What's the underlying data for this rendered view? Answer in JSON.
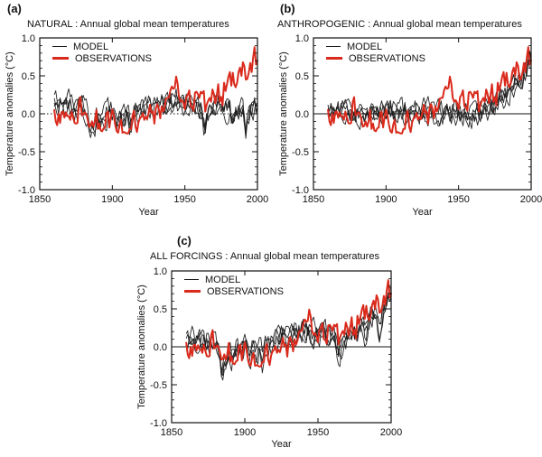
{
  "chart_data": {
    "type": "line",
    "xlabel": "Year",
    "ylabel": "Temperature anomalies (°C)",
    "xlim": [
      1850,
      2000
    ],
    "ylim": [
      -1.0,
      1.0
    ],
    "x_ticks": [
      1850,
      1900,
      1950,
      2000
    ],
    "x_tick_labels": [
      "1850",
      "1900",
      "1950",
      "2000"
    ],
    "y_ticks": [
      1.0,
      0.5,
      0.0,
      -0.5,
      -1.0
    ],
    "y_tick_labels": [
      "1.0",
      "0.5",
      "0.0",
      "-0.5",
      "-1.0"
    ],
    "y_minor_tick_step": 0.1,
    "grid": false,
    "legend": [
      "MODEL",
      "OBSERVATIONS"
    ],
    "legend_position": "top-left",
    "colors": {
      "model": "#1a1a1a",
      "observations": "#d92a1c"
    },
    "model": {
      "name": "MODEL",
      "ensemble_members": 4
    },
    "observations": {
      "name": "OBSERVATIONS",
      "year_start": 1860,
      "year_step": 1,
      "values": [
        0.05,
        -0.1,
        -0.15,
        0.0,
        -0.12,
        0.02,
        0.03,
        -0.05,
        0.02,
        -0.03,
        -0.03,
        -0.08,
        0.03,
        -0.05,
        -0.12,
        -0.13,
        -0.12,
        0.15,
        0.22,
        -0.02,
        -0.01,
        0.02,
        0.0,
        -0.07,
        -0.17,
        -0.16,
        -0.1,
        -0.17,
        -0.1,
        0.05,
        -0.2,
        -0.13,
        -0.22,
        -0.23,
        -0.19,
        -0.18,
        0.01,
        0.03,
        -0.18,
        -0.05,
        0.06,
        -0.02,
        -0.14,
        -0.23,
        -0.25,
        -0.14,
        -0.08,
        -0.25,
        -0.24,
        -0.25,
        -0.26,
        -0.26,
        -0.2,
        -0.2,
        -0.02,
        0.04,
        -0.17,
        -0.24,
        -0.11,
        -0.06,
        -0.04,
        0.01,
        -0.08,
        -0.04,
        -0.07,
        0.01,
        0.12,
        0.01,
        0.03,
        -0.13,
        0.07,
        0.13,
        0.07,
        -0.06,
        0.1,
        0.03,
        0.08,
        0.2,
        0.21,
        0.21,
        0.31,
        0.36,
        0.33,
        0.34,
        0.49,
        0.4,
        0.21,
        0.16,
        0.18,
        0.14,
        0.06,
        0.22,
        0.25,
        0.31,
        0.1,
        0.09,
        0.04,
        0.28,
        0.29,
        0.26,
        0.21,
        0.29,
        0.27,
        0.3,
        0.03,
        0.12,
        0.17,
        0.21,
        0.16,
        0.32,
        0.26,
        0.14,
        0.24,
        0.39,
        0.16,
        0.22,
        0.11,
        0.41,
        0.3,
        0.39,
        0.49,
        0.55,
        0.37,
        0.54,
        0.39,
        0.35,
        0.41,
        0.55,
        0.61,
        0.5,
        0.68,
        0.63,
        0.45,
        0.46,
        0.54,
        0.67,
        0.55,
        0.74,
        0.88,
        0.65,
        0.7
      ]
    },
    "panels": [
      {
        "panel_label": "(a)",
        "title": "NATURAL : Annual global mean temperatures",
        "zero_line_style": "dotted",
        "model_mean": [
          0.15,
          0.16,
          0.12,
          0.1,
          0.14,
          0.15,
          0.17,
          0.13,
          0.1,
          0.12,
          0.14,
          0.12,
          0.13,
          0.11,
          0.1,
          0.12,
          0.1,
          0.11,
          0.13,
          0.1,
          0.1,
          0.08,
          0.05,
          -0.1,
          -0.28,
          -0.3,
          -0.2,
          -0.15,
          -0.12,
          -0.05,
          -0.08,
          -0.12,
          -0.08,
          -0.05,
          -0.03,
          -0.02,
          0.0,
          0.02,
          0.02,
          0.03,
          0.02,
          0.0,
          -0.1,
          -0.15,
          -0.1,
          -0.05,
          -0.02,
          -0.08,
          -0.05,
          -0.05,
          -0.03,
          -0.05,
          -0.15,
          -0.12,
          -0.05,
          0.0,
          0.02,
          0.0,
          0.02,
          0.05,
          0.06,
          0.08,
          0.07,
          0.08,
          0.09,
          0.1,
          0.11,
          0.11,
          0.1,
          0.09,
          0.11,
          0.12,
          0.12,
          0.11,
          0.12,
          0.12,
          0.13,
          0.14,
          0.15,
          0.15,
          0.16,
          0.16,
          0.15,
          0.15,
          0.16,
          0.15,
          0.14,
          0.14,
          0.13,
          0.13,
          0.14,
          0.15,
          0.16,
          0.16,
          0.15,
          0.14,
          0.13,
          0.15,
          0.16,
          0.15,
          0.13,
          0.12,
          0.08,
          -0.1,
          -0.18,
          -0.12,
          -0.06,
          -0.02,
          -0.05,
          -0.02,
          0.02,
          0.03,
          0.04,
          0.05,
          0.03,
          0.04,
          0.03,
          0.05,
          0.05,
          0.06,
          0.06,
          0.05,
          -0.1,
          -0.12,
          -0.05,
          0.0,
          0.03,
          0.05,
          0.06,
          0.05,
          0.06,
          -0.1,
          -0.22,
          -0.15,
          -0.05,
          0.0,
          0.02,
          0.03,
          0.04,
          0.02,
          0.0
        ]
      },
      {
        "panel_label": "(b)",
        "title": "ANTHROPOGENIC : Annual global mean temperatures",
        "zero_line_style": "solid",
        "model_mean": [
          0.0,
          0.0,
          0.0,
          0.0,
          0.0,
          0.0,
          0.0,
          0.0,
          0.0,
          0.0,
          0.0,
          0.0,
          0.0,
          0.0,
          0.0,
          0.0,
          0.0,
          0.0,
          0.01,
          0.01,
          0.01,
          0.01,
          0.01,
          0.01,
          0.01,
          0.01,
          0.01,
          0.01,
          0.01,
          0.01,
          0.01,
          0.01,
          0.01,
          0.01,
          0.01,
          0.01,
          0.01,
          0.01,
          0.01,
          0.01,
          0.01,
          0.01,
          0.01,
          0.02,
          0.02,
          0.02,
          0.02,
          0.02,
          0.02,
          0.02,
          0.02,
          0.02,
          0.02,
          0.02,
          0.02,
          0.02,
          0.02,
          0.02,
          0.02,
          0.02,
          0.02,
          0.02,
          0.02,
          0.03,
          0.03,
          0.03,
          0.03,
          0.03,
          0.03,
          0.03,
          0.03,
          0.03,
          0.03,
          0.03,
          0.03,
          0.03,
          0.03,
          0.03,
          0.03,
          0.03,
          0.03,
          0.03,
          0.02,
          0.02,
          0.02,
          0.01,
          0.01,
          0.0,
          0.0,
          -0.01,
          -0.01,
          -0.02,
          -0.02,
          -0.03,
          -0.03,
          -0.03,
          -0.03,
          -0.02,
          -0.02,
          -0.02,
          -0.02,
          -0.01,
          0.0,
          0.0,
          0.01,
          0.02,
          0.03,
          0.04,
          0.05,
          0.06,
          0.07,
          0.08,
          0.09,
          0.11,
          0.12,
          0.13,
          0.15,
          0.16,
          0.17,
          0.19,
          0.21,
          0.22,
          0.24,
          0.26,
          0.28,
          0.31,
          0.33,
          0.36,
          0.38,
          0.41,
          0.43,
          0.45,
          0.48,
          0.51,
          0.54,
          0.57,
          0.6,
          0.64,
          0.68,
          0.71,
          0.75
        ]
      },
      {
        "panel_label": "(c)",
        "title": "ALL FORCINGS : Annual global mean temperatures",
        "zero_line_style": "solid",
        "model_mean": [
          0.08,
          0.09,
          0.06,
          0.05,
          0.07,
          0.08,
          0.09,
          0.07,
          0.05,
          0.06,
          0.07,
          0.06,
          0.07,
          0.05,
          0.05,
          0.06,
          0.05,
          0.06,
          0.07,
          0.05,
          0.05,
          0.04,
          0.02,
          -0.12,
          -0.26,
          -0.28,
          -0.2,
          -0.15,
          -0.12,
          -0.06,
          -0.08,
          -0.12,
          -0.08,
          -0.06,
          -0.04,
          -0.03,
          -0.01,
          0.01,
          0.01,
          0.02,
          0.02,
          0.0,
          -0.1,
          -0.14,
          -0.1,
          -0.05,
          -0.02,
          -0.08,
          -0.06,
          -0.06,
          -0.04,
          -0.06,
          -0.16,
          -0.12,
          -0.05,
          0.0,
          0.02,
          0.01,
          0.03,
          0.06,
          0.08,
          0.09,
          0.09,
          0.1,
          0.11,
          0.12,
          0.13,
          0.14,
          0.14,
          0.13,
          0.15,
          0.16,
          0.16,
          0.16,
          0.17,
          0.17,
          0.18,
          0.2,
          0.21,
          0.21,
          0.22,
          0.23,
          0.22,
          0.22,
          0.23,
          0.22,
          0.2,
          0.19,
          0.18,
          0.17,
          0.17,
          0.18,
          0.19,
          0.2,
          0.18,
          0.16,
          0.15,
          0.18,
          0.19,
          0.18,
          0.16,
          0.15,
          0.1,
          -0.08,
          -0.16,
          -0.1,
          -0.03,
          0.02,
          0.0,
          0.04,
          0.09,
          0.11,
          0.13,
          0.15,
          0.13,
          0.16,
          0.16,
          0.2,
          0.22,
          0.25,
          0.27,
          0.28,
          0.14,
          0.14,
          0.24,
          0.32,
          0.36,
          0.4,
          0.44,
          0.45,
          0.48,
          0.35,
          0.26,
          0.36,
          0.48,
          0.55,
          0.58,
          0.63,
          0.68,
          0.72,
          0.76
        ]
      }
    ]
  }
}
